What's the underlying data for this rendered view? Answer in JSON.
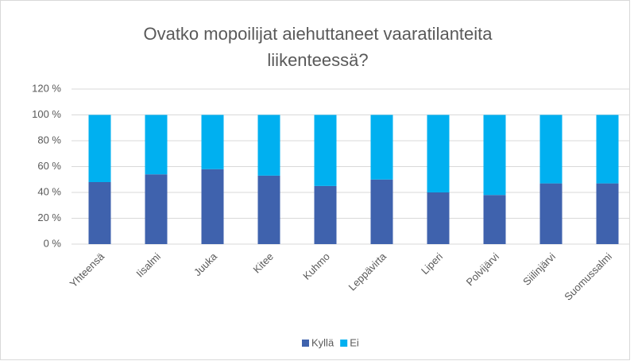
{
  "chart_data": {
    "type": "stacked_bar",
    "title": "Ovatko mopoilijat aiehuttaneet vaaratilanteita liikenteessä?",
    "categories": [
      "Yhteensä",
      "Iisalmi",
      "Juuka",
      "Kitee",
      "Kuhmo",
      "Leppävirta",
      "Liperi",
      "Polvijärvi",
      "Siilinjärvi",
      "Suomussalmi"
    ],
    "series": [
      {
        "name": "Kyllä",
        "color": "#3f62ad",
        "values": [
          48,
          54,
          58,
          53,
          45,
          50,
          40,
          38,
          47,
          47
        ]
      },
      {
        "name": "Ei",
        "color": "#00b0f0",
        "values": [
          52,
          46,
          42,
          47,
          55,
          50,
          60,
          62,
          53,
          53
        ]
      }
    ],
    "ylim": [
      0,
      120
    ],
    "yticks": [
      {
        "value": 0,
        "label": "0 %"
      },
      {
        "value": 20,
        "label": "20 %"
      },
      {
        "value": 40,
        "label": "40 %"
      },
      {
        "value": 60,
        "label": "60 %"
      },
      {
        "value": 80,
        "label": "80 %"
      },
      {
        "value": 100,
        "label": "100 %"
      },
      {
        "value": 120,
        "label": "120 %"
      }
    ],
    "grid": true,
    "legend": "bottom"
  }
}
